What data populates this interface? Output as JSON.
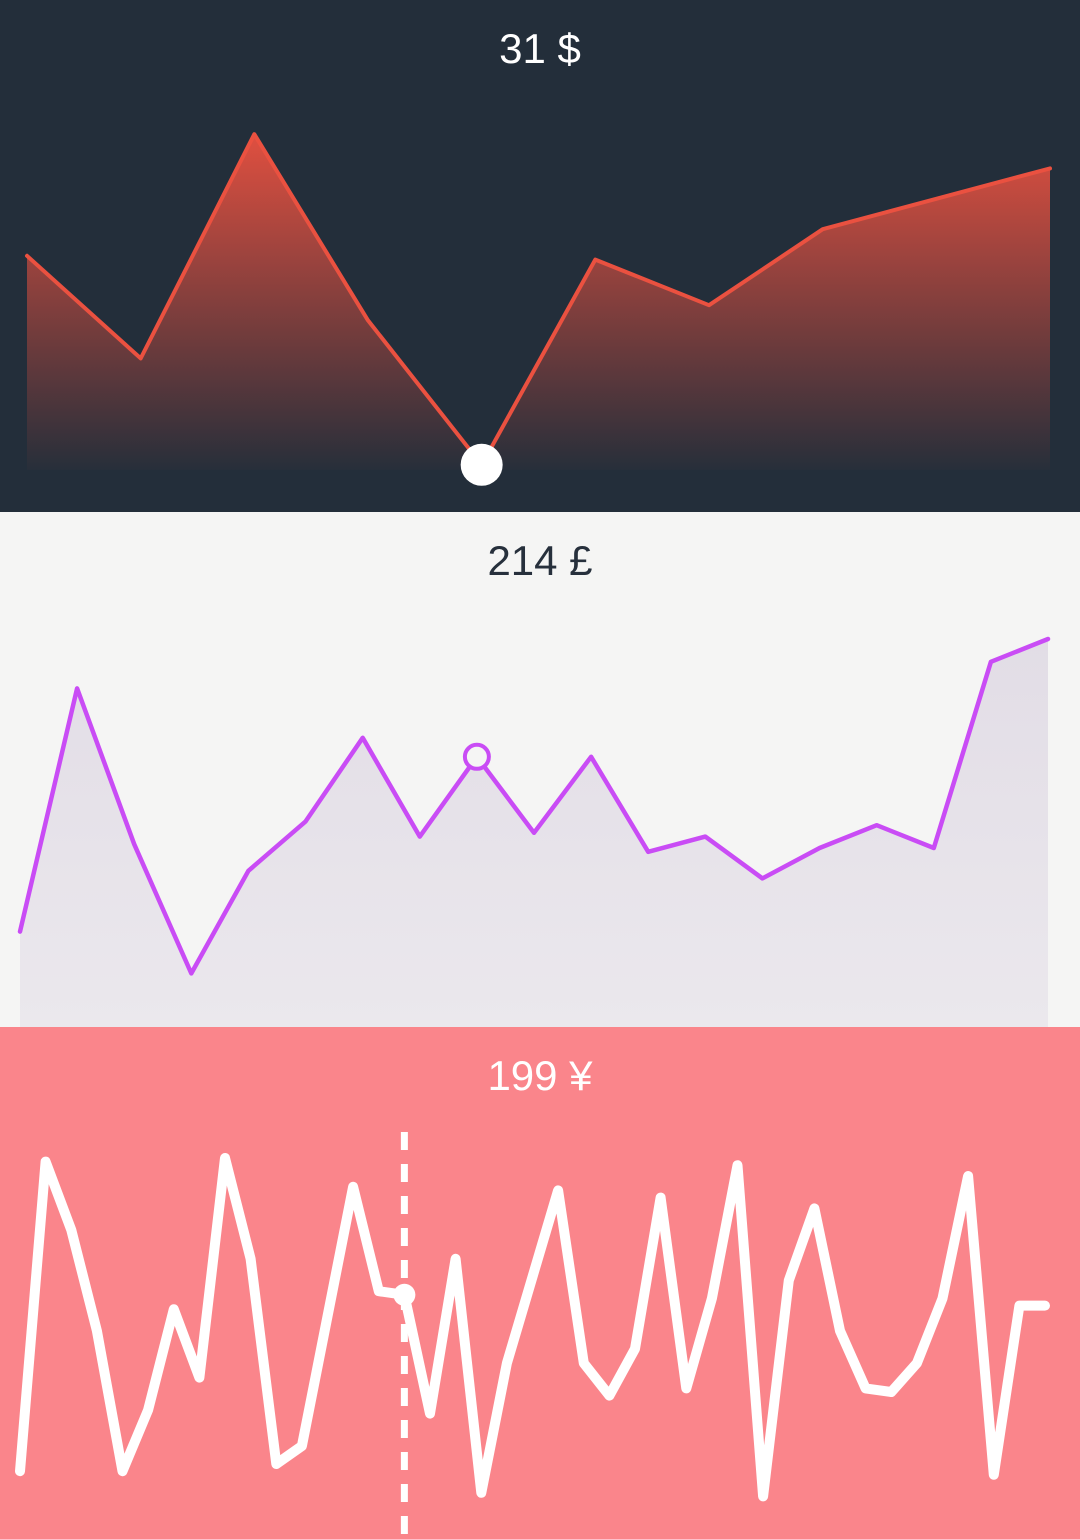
{
  "chart_data": [
    {
      "type": "area",
      "title": "31 $",
      "color": "#ea5140",
      "background": "#232e3a",
      "ylim": [
        0,
        100
      ],
      "highlight": 4,
      "values": [
        59,
        32,
        91,
        42,
        4,
        58,
        46,
        66,
        74,
        82
      ]
    },
    {
      "type": "area",
      "title": "214 £",
      "color": "#c94cf5",
      "background": "#f5f5f4",
      "ylim": [
        0,
        100
      ],
      "highlight": 8,
      "values": [
        18,
        82,
        41,
        7,
        34,
        47,
        69,
        43,
        64,
        44,
        64,
        39,
        43,
        32,
        40,
        46,
        40,
        89,
        95
      ]
    },
    {
      "type": "line",
      "title": "199 ¥",
      "color": "#ffffff",
      "background": "#fa858b",
      "ylim": [
        0,
        100
      ],
      "highlight": 15,
      "values": [
        8,
        94,
        75,
        47,
        8,
        25,
        53,
        34,
        95,
        67,
        10,
        15,
        51,
        87,
        58,
        57,
        24,
        67,
        2,
        38,
        62,
        86,
        38,
        29,
        42,
        84,
        31,
        56,
        93,
        1,
        61,
        81,
        47,
        31,
        30,
        38,
        56,
        90,
        7,
        54,
        54
      ]
    }
  ]
}
